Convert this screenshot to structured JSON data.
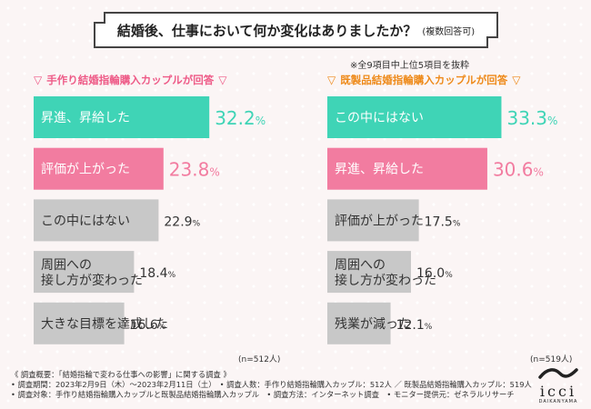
{
  "title": "結婚後、仕事において何か変化はありましたか？",
  "title_note": "(複数回答可)",
  "subset_note": "※全9項目中上位5項目を抜粋",
  "left_panel": {
    "header": "手作り結婚指輪購入カップルが回答",
    "n_label": "(n=512人)"
  },
  "right_panel": {
    "header": "既製品結婚指輪購入カップルが回答",
    "n_label": "(n=519人)"
  },
  "footer": {
    "line1": "《 調査概要：「結婚指輪で変わる仕事への影響」に関する調査 》",
    "line2": "• 調査期間：2023年2月9日（木）～2023年2月11日（土）　• 調査人数：手作り結婚指輪購入カップル：512人 ／ 既製品結婚指輪購入カップル：519人",
    "line3": "• 調査対象：手作り結婚指輪購入カップルと既製品結婚指輪購入カップル　• 調査方法：インターネット調査　• モニター提供元：ゼネラルリサーチ"
  },
  "logo": {
    "text": "icci",
    "sub": "DAIKANYAMA"
  },
  "colors": {
    "teal": "#3fd4b6",
    "pink": "#f27ca0",
    "gray": "#c8c8c8",
    "left_head": "#ee5a87",
    "right_head": "#ee8a1a"
  },
  "chart_data": [
    {
      "type": "bar",
      "orientation": "horizontal",
      "title": "手作り結婚指輪購入カップルが回答",
      "categories": [
        "昇進、昇給した",
        "評価が上がった",
        "この中にはない",
        "周囲への\n接し方が変わった",
        "大きな目標を達成した"
      ],
      "values": [
        32.2,
        23.8,
        22.9,
        18.4,
        16.6
      ],
      "unit": "%",
      "bar_colors": [
        "#3fd4b6",
        "#f27ca0",
        "#c8c8c8",
        "#c8c8c8",
        "#c8c8c8"
      ],
      "n": "n=512人"
    },
    {
      "type": "bar",
      "orientation": "horizontal",
      "title": "既製品結婚指輪購入カップルが回答",
      "categories": [
        "この中にはない",
        "昇進、昇給した",
        "評価が上がった",
        "周囲への\n接し方が変わった",
        "残業が減った"
      ],
      "values": [
        33.3,
        30.6,
        17.5,
        16.0,
        12.1
      ],
      "unit": "%",
      "bar_colors": [
        "#3fd4b6",
        "#f27ca0",
        "#c8c8c8",
        "#c8c8c8",
        "#c8c8c8"
      ],
      "n": "n=519人"
    }
  ]
}
